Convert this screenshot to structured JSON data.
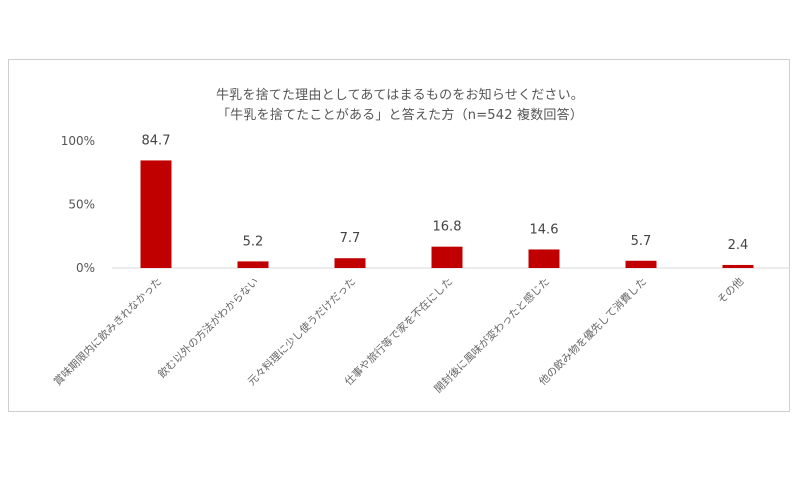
{
  "chart_data": {
    "type": "bar",
    "title": "牛乳を捨てた理由としてあてはまるものをお知らせください。",
    "subtitle": "「牛乳を捨てたことがある」と答えた方（n=542 複数回答）",
    "categories": [
      "賞味期限内に飲みきれなかった",
      "飲む以外の方法がわからない",
      "元々料理に少し使うだけだった",
      "仕事や旅行等で家を不在にした",
      "開封後に風味が変わったと感じた",
      "他の飲み物を優先して消費した",
      "その他"
    ],
    "values": [
      84.7,
      5.2,
      7.7,
      16.8,
      14.6,
      5.7,
      2.4
    ],
    "data_labels": [
      "84.7",
      "5.2",
      "7.7",
      "16.8",
      "14.6",
      "5.7",
      "2.4"
    ],
    "yticks": [
      "0%",
      "50%",
      "100%"
    ],
    "ylim": [
      0,
      100
    ],
    "bar_color": "#c00000",
    "grid": false,
    "legend": "none"
  }
}
